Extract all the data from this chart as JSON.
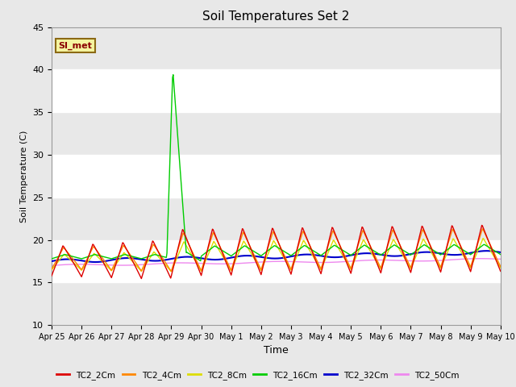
{
  "title": "Soil Temperatures Set 2",
  "xlabel": "Time",
  "ylabel": "Soil Temperature (C)",
  "ylim": [
    10,
    45
  ],
  "yticks": [
    10,
    15,
    20,
    25,
    30,
    35,
    40,
    45
  ],
  "background_color": "#e8e8e8",
  "plot_bg_color": "#ffffff",
  "grid_color": "#dddddd",
  "annotation_text": "SI_met",
  "annotation_color": "#8B0000",
  "annotation_bg": "#f5f5a0",
  "annotation_border": "#8B6914",
  "series_colors": {
    "TC2_2Cm": "#dd0000",
    "TC2_4Cm": "#ff8800",
    "TC2_8Cm": "#dddd00",
    "TC2_16Cm": "#00cc00",
    "TC2_32Cm": "#0000cc",
    "TC2_50Cm": "#ee88ee"
  },
  "legend_colors": [
    "#dd0000",
    "#ff8800",
    "#dddd00",
    "#00cc00",
    "#0000cc",
    "#ee88ee"
  ],
  "legend_labels": [
    "TC2_2Cm",
    "TC2_4Cm",
    "TC2_8Cm",
    "TC2_16Cm",
    "TC2_32Cm",
    "TC2_50Cm"
  ],
  "xtick_labels": [
    "Apr 25",
    "Apr 26",
    "Apr 27",
    "Apr 28",
    "Apr 29",
    "Apr 30",
    "May 1",
    "May 2",
    "May 3",
    "May 4",
    "May 5",
    "May 6",
    "May 7",
    "May 8",
    "May 9",
    "May 10"
  ],
  "n_points": 721
}
